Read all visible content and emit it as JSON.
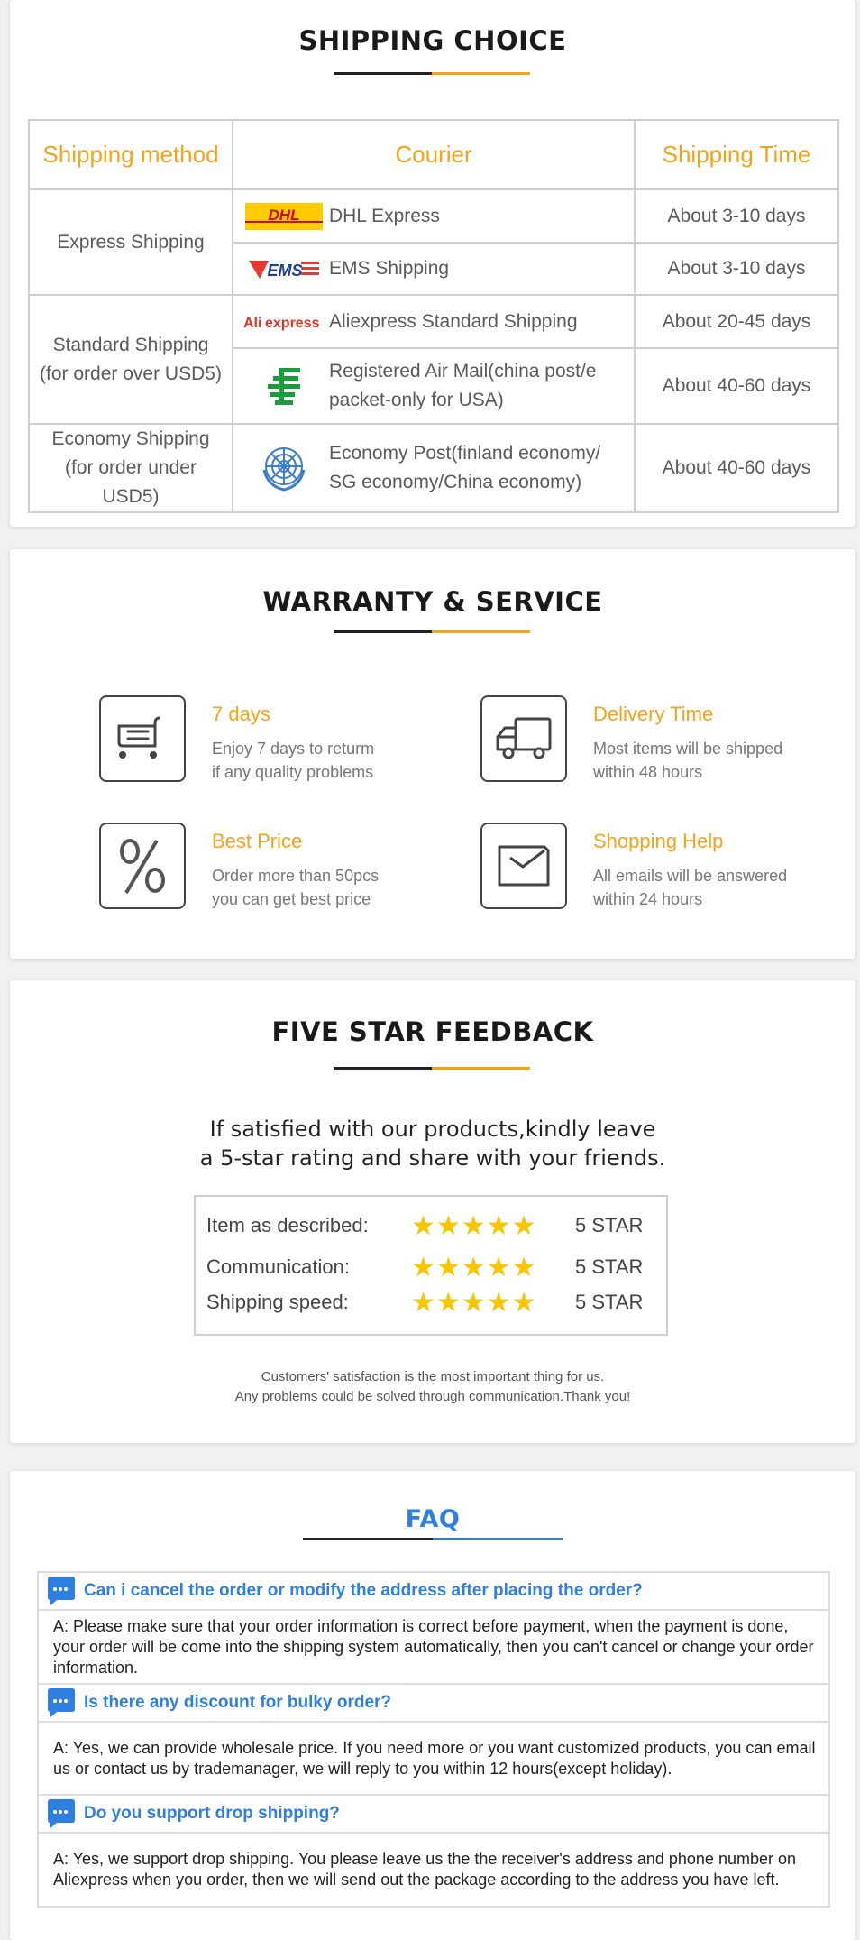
{
  "colors": {
    "accent_orange": "#f5a31a",
    "faq_blue": "#2f7fe0",
    "star_yellow": "#f7c600"
  },
  "shipping": {
    "title": "SHIPPING CHOICE",
    "headers": [
      "Shipping method",
      "Courier",
      "Shipping Time"
    ],
    "groups": [
      {
        "method": [
          "Express Shipping"
        ],
        "rows": [
          {
            "logo": "dhl-logo",
            "logo_text": "DHL",
            "courier": "DHL Express",
            "time": "About 3-10 days"
          },
          {
            "logo": "ems-logo",
            "logo_text": "EMS",
            "courier": "EMS Shipping",
            "time": "About 3-10 days"
          }
        ]
      },
      {
        "method": [
          "Standard Shipping",
          "(for order over USD5)"
        ],
        "rows": [
          {
            "logo": "aliexpress-logo",
            "logo_text": "AliExpress",
            "courier": "Aliexpress Standard Shipping",
            "time": "About 20-45 days"
          },
          {
            "logo": "china-post-logo",
            "courier_lines": [
              "Registered Air Mail(china post/e",
              "packet-only for USA)"
            ],
            "time": "About 40-60 days"
          }
        ]
      },
      {
        "method": [
          "Economy Shipping",
          "(for order under USD5)"
        ],
        "rows": [
          {
            "logo": "un-logo",
            "courier_lines": [
              "Economy Post(finland economy/",
              "SG economy/China economy)"
            ],
            "time": "About 40-60 days"
          }
        ]
      }
    ]
  },
  "warranty": {
    "title": "WARRANTY & SERVICE",
    "items": [
      {
        "icon": "cart-icon",
        "title": "7 days",
        "desc": [
          "Enjoy 7 days to returm",
          "if any quality problems"
        ]
      },
      {
        "icon": "truck-icon",
        "title": "Delivery Time",
        "desc": [
          "Most items will be shipped",
          "within 48 hours"
        ]
      },
      {
        "icon": "percent-icon",
        "title": "Best Price",
        "desc": [
          "Order more than 50pcs",
          "you can get best price"
        ]
      },
      {
        "icon": "envelope-icon",
        "title": "Shopping Help",
        "desc": [
          "All emails will be answered",
          "within 24 hours"
        ]
      }
    ]
  },
  "feedback": {
    "title": "FIVE STAR FEEDBACK",
    "lead": [
      "If satisfied with our products,kindly leave",
      "a 5-star rating and share with your friends."
    ],
    "ratings": [
      {
        "label": "Item as described:",
        "stars": 5,
        "stars_text": "★★★★★",
        "value": "5 STAR"
      },
      {
        "label": "Communication:",
        "stars": 5,
        "stars_text": "★★★★★",
        "value": "5 STAR"
      },
      {
        "label": "Shipping speed:",
        "stars": 5,
        "stars_text": "★★★★★",
        "value": "5 STAR"
      }
    ],
    "footer": [
      "Customers' satisfaction is the most important thing for us.",
      "Any problems could be solved through communication.Thank you!"
    ]
  },
  "faq": {
    "title": "FAQ",
    "items": [
      {
        "q": "Can i cancel the order or modify the address after placing the order?",
        "a": "A: Please make sure that your order information is correct before payment, when the payment is done, your order will be come into the shipping system automatically, then you can't cancel or change your order information."
      },
      {
        "q": "Is there any discount for bulky order?",
        "a": "A: Yes, we can provide wholesale price. If you need more or you want customized products, you can email us or contact us by trademanager, we will reply to you within 12 hours(except holiday)."
      },
      {
        "q": "Do you support drop shipping?",
        "a": "A: Yes, we support drop shipping. You please leave us the the receiver's address and phone number on Aliexpress when you order, then we will send out the package according to the address you have left."
      }
    ]
  }
}
